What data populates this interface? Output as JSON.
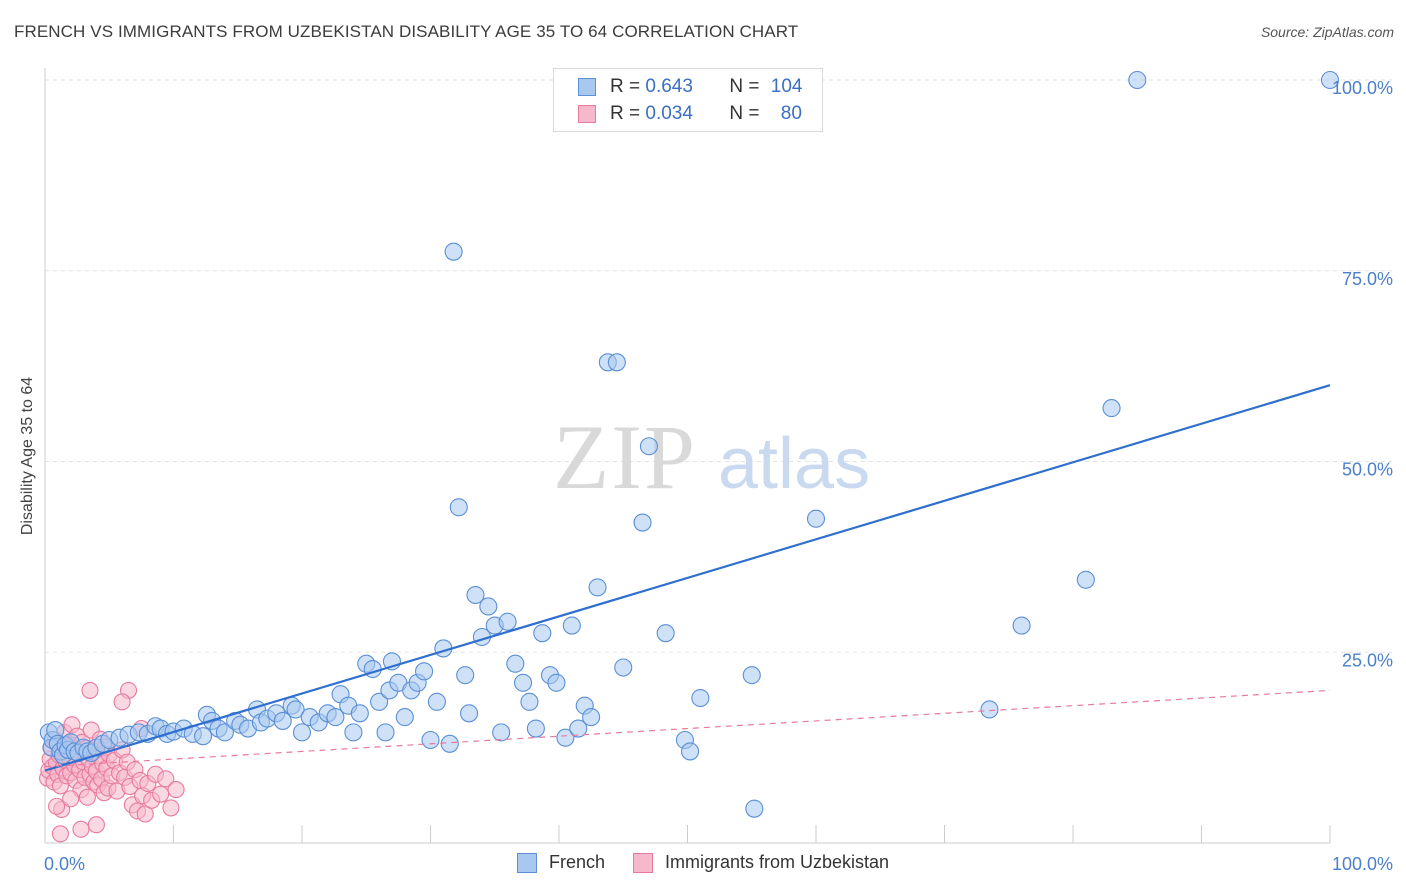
{
  "header": {
    "title": "FRENCH VS IMMIGRANTS FROM UZBEKISTAN DISABILITY AGE 35 TO 64 CORRELATION CHART",
    "source": "Source: ZipAtlas.com"
  },
  "watermark": {
    "zip": "ZIP",
    "atlas": "atlas"
  },
  "legend": {
    "french": {
      "r_label": "R = ",
      "r_value": "0.643",
      "n_label": "N = ",
      "n_value": "104",
      "color": "#a8c8f0",
      "stroke": "#5b8fd6"
    },
    "uzbek": {
      "r_label": "R = ",
      "r_value": "0.034",
      "n_label": "N = ",
      "n_value": "80",
      "color": "#f6b8cb",
      "stroke": "#e87a9f"
    }
  },
  "bottom_legend": {
    "french_label": "French",
    "uzbek_label": "Immigrants from Uzbekistan"
  },
  "chart_data": {
    "type": "scatter",
    "title": "FRENCH VS IMMIGRANTS FROM UZBEKISTAN DISABILITY AGE 35 TO 64 CORRELATION CHART",
    "xlabel": "",
    "ylabel": "Disability Age 35 to 64",
    "xlim": [
      0,
      100
    ],
    "ylim": [
      0,
      100
    ],
    "x_tick_labels": [
      "0.0%",
      "100.0%"
    ],
    "y_tick_labels": [
      {
        "value": 25,
        "label": "25.0%"
      },
      {
        "value": 50,
        "label": "50.0%"
      },
      {
        "value": 75,
        "label": "75.0%"
      },
      {
        "value": 100,
        "label": "100.0%"
      }
    ],
    "grid": true,
    "series": [
      {
        "name": "French",
        "color": "#a8c8f0",
        "stroke": "#5b8fd6",
        "trend": {
          "x": [
            0,
            100
          ],
          "y": [
            9.5,
            60
          ]
        },
        "points": [
          [
            0.3,
            14.5
          ],
          [
            0.5,
            12.5
          ],
          [
            0.6,
            13.5
          ],
          [
            0.8,
            14.8
          ],
          [
            1.0,
            13.0
          ],
          [
            1.2,
            12.0
          ],
          [
            1.4,
            11.5
          ],
          [
            1.6,
            12.8
          ],
          [
            1.8,
            12.2
          ],
          [
            2.0,
            13.2
          ],
          [
            2.3,
            12.0
          ],
          [
            2.6,
            11.8
          ],
          [
            3.0,
            12.5
          ],
          [
            3.3,
            12.0
          ],
          [
            3.6,
            11.8
          ],
          [
            4.0,
            12.5
          ],
          [
            4.5,
            13.0
          ],
          [
            5.0,
            13.5
          ],
          [
            5.8,
            13.8
          ],
          [
            6.5,
            14.2
          ],
          [
            7.3,
            14.5
          ],
          [
            8.0,
            14.3
          ],
          [
            8.6,
            15.3
          ],
          [
            9.0,
            15.0
          ],
          [
            9.5,
            14.3
          ],
          [
            10.0,
            14.6
          ],
          [
            10.8,
            15.0
          ],
          [
            11.5,
            14.3
          ],
          [
            12.3,
            14.0
          ],
          [
            12.6,
            16.8
          ],
          [
            13.0,
            16.0
          ],
          [
            13.5,
            15.0
          ],
          [
            14.0,
            14.5
          ],
          [
            14.8,
            16.0
          ],
          [
            15.2,
            15.5
          ],
          [
            15.8,
            15.0
          ],
          [
            16.5,
            17.5
          ],
          [
            16.8,
            15.8
          ],
          [
            17.3,
            16.3
          ],
          [
            18.0,
            17.0
          ],
          [
            18.5,
            16.0
          ],
          [
            19.2,
            18.0
          ],
          [
            19.5,
            17.5
          ],
          [
            20.0,
            14.5
          ],
          [
            20.6,
            16.5
          ],
          [
            21.3,
            15.8
          ],
          [
            22.0,
            17.0
          ],
          [
            22.6,
            16.5
          ],
          [
            23.0,
            19.5
          ],
          [
            23.6,
            18.0
          ],
          [
            24.0,
            14.5
          ],
          [
            24.5,
            17.0
          ],
          [
            25.0,
            23.5
          ],
          [
            25.5,
            22.8
          ],
          [
            26.0,
            18.5
          ],
          [
            26.5,
            14.5
          ],
          [
            26.8,
            20.0
          ],
          [
            27.0,
            23.8
          ],
          [
            27.5,
            21.0
          ],
          [
            28.0,
            16.5
          ],
          [
            28.5,
            20.0
          ],
          [
            29.0,
            21.0
          ],
          [
            29.5,
            22.5
          ],
          [
            30.0,
            13.5
          ],
          [
            30.5,
            18.5
          ],
          [
            31.0,
            25.5
          ],
          [
            31.5,
            13.0
          ],
          [
            31.8,
            77.5
          ],
          [
            32.2,
            44.0
          ],
          [
            32.7,
            22.0
          ],
          [
            33.0,
            17.0
          ],
          [
            33.5,
            32.5
          ],
          [
            34.0,
            27.0
          ],
          [
            34.5,
            31.0
          ],
          [
            35.0,
            28.5
          ],
          [
            35.5,
            14.5
          ],
          [
            36.0,
            29.0
          ],
          [
            36.6,
            23.5
          ],
          [
            37.2,
            21.0
          ],
          [
            37.7,
            18.5
          ],
          [
            38.2,
            15.0
          ],
          [
            38.7,
            27.5
          ],
          [
            39.3,
            22.0
          ],
          [
            39.8,
            21.0
          ],
          [
            40.5,
            13.8
          ],
          [
            41.0,
            28.5
          ],
          [
            41.5,
            15.0
          ],
          [
            42.0,
            18.0
          ],
          [
            42.5,
            16.5
          ],
          [
            43.0,
            33.5
          ],
          [
            43.8,
            63.0
          ],
          [
            44.5,
            63.0
          ],
          [
            45.0,
            23.0
          ],
          [
            46.5,
            42.0
          ],
          [
            47.0,
            52.0
          ],
          [
            48.3,
            27.5
          ],
          [
            49.8,
            13.5
          ],
          [
            50.2,
            12.0
          ],
          [
            51.0,
            19.0
          ],
          [
            55.0,
            22.0
          ],
          [
            55.2,
            4.5
          ],
          [
            60.0,
            42.5
          ],
          [
            76.0,
            28.5
          ],
          [
            73.5,
            17.5
          ],
          [
            81.0,
            34.5
          ],
          [
            83.0,
            57.0
          ],
          [
            85.0,
            100.0
          ],
          [
            100.0,
            100.0
          ]
        ]
      },
      {
        "name": "Immigrants from Uzbekistan",
        "color": "#f6b8cb",
        "stroke": "#e87a9f",
        "trend": {
          "x": [
            0,
            100
          ],
          "y": [
            10,
            20
          ]
        },
        "points": [
          [
            0.2,
            8.5
          ],
          [
            0.3,
            9.5
          ],
          [
            0.4,
            11.0
          ],
          [
            0.5,
            12.5
          ],
          [
            0.6,
            10.0
          ],
          [
            0.7,
            8.0
          ],
          [
            0.8,
            13.5
          ],
          [
            0.9,
            10.5
          ],
          [
            1.0,
            9.0
          ],
          [
            1.1,
            11.5
          ],
          [
            1.2,
            7.5
          ],
          [
            1.3,
            12.0
          ],
          [
            1.4,
            9.8
          ],
          [
            1.5,
            14.5
          ],
          [
            1.6,
            10.8
          ],
          [
            1.7,
            8.8
          ],
          [
            1.8,
            13.0
          ],
          [
            1.9,
            11.2
          ],
          [
            2.0,
            9.2
          ],
          [
            2.1,
            15.5
          ],
          [
            2.2,
            12.8
          ],
          [
            2.3,
            10.2
          ],
          [
            2.4,
            8.2
          ],
          [
            2.5,
            14.0
          ],
          [
            2.6,
            11.8
          ],
          [
            2.7,
            9.6
          ],
          [
            2.8,
            7.0
          ],
          [
            2.9,
            13.2
          ],
          [
            3.0,
            10.6
          ],
          [
            3.1,
            8.6
          ],
          [
            3.2,
            12.4
          ],
          [
            3.3,
            6.0
          ],
          [
            3.4,
            11.0
          ],
          [
            3.5,
            9.0
          ],
          [
            3.6,
            14.8
          ],
          [
            3.7,
            10.0
          ],
          [
            3.8,
            8.0
          ],
          [
            3.9,
            12.0
          ],
          [
            4.0,
            9.4
          ],
          [
            4.1,
            7.6
          ],
          [
            4.2,
            11.4
          ],
          [
            4.3,
            13.6
          ],
          [
            4.4,
            8.4
          ],
          [
            4.5,
            10.4
          ],
          [
            4.6,
            6.6
          ],
          [
            4.7,
            12.6
          ],
          [
            4.8,
            9.8
          ],
          [
            4.9,
            7.2
          ],
          [
            5.0,
            11.6
          ],
          [
            5.2,
            8.8
          ],
          [
            5.4,
            10.8
          ],
          [
            5.6,
            6.8
          ],
          [
            5.8,
            9.2
          ],
          [
            6.0,
            12.2
          ],
          [
            6.2,
            8.6
          ],
          [
            6.4,
            10.6
          ],
          [
            6.6,
            7.4
          ],
          [
            6.8,
            5.0
          ],
          [
            7.0,
            9.6
          ],
          [
            7.2,
            4.2
          ],
          [
            7.4,
            8.2
          ],
          [
            7.6,
            6.2
          ],
          [
            7.8,
            3.8
          ],
          [
            8.0,
            7.8
          ],
          [
            8.3,
            5.6
          ],
          [
            8.6,
            9.0
          ],
          [
            9.0,
            6.4
          ],
          [
            9.4,
            8.4
          ],
          [
            9.8,
            4.6
          ],
          [
            10.2,
            7.0
          ],
          [
            1.3,
            4.4
          ],
          [
            2.0,
            5.8
          ],
          [
            3.5,
            20.0
          ],
          [
            6.5,
            20.0
          ],
          [
            7.5,
            15.0
          ],
          [
            6.0,
            18.5
          ],
          [
            0.9,
            4.8
          ],
          [
            2.8,
            1.8
          ],
          [
            4.0,
            2.4
          ],
          [
            1.2,
            1.2
          ]
        ]
      }
    ]
  }
}
